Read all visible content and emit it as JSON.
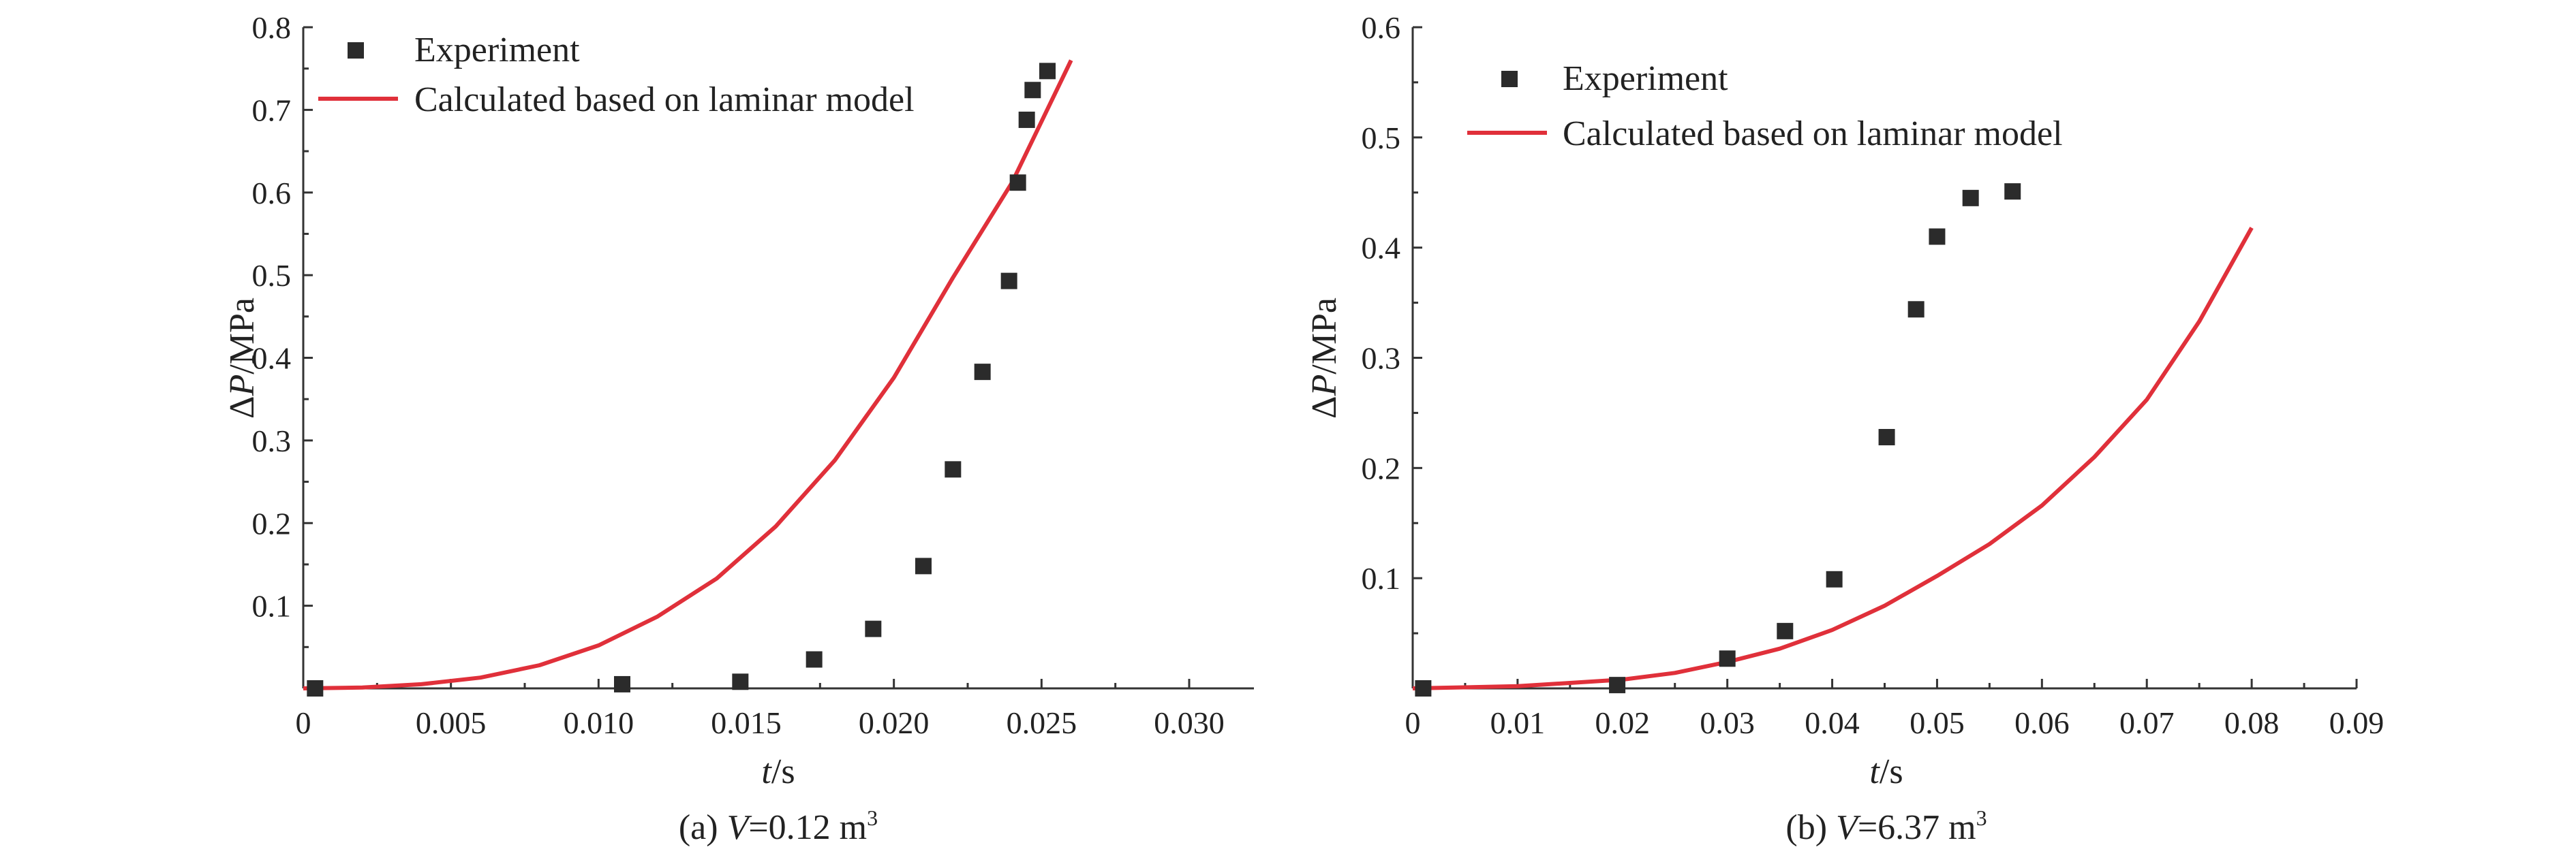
{
  "chart_data": [
    {
      "type": "scatter+line",
      "caption": "(a) V=0.12 m3",
      "caption_parts": {
        "pre": "(a) ",
        "var": "V",
        "mid": "=0.12 m",
        "sup": "3"
      },
      "xlabel": "t/s",
      "xlabel_parts": {
        "var": "t",
        "rest": "/s"
      },
      "ylabel": "ΔP/MPa",
      "ylabel_parts": {
        "pre": "Δ",
        "var": "P",
        "rest": "/MPa"
      },
      "xlim": [
        0,
        0.03
      ],
      "ylim": [
        0,
        0.8
      ],
      "xticks": [
        "0",
        "0.005",
        "0.010",
        "0.015",
        "0.020",
        "0.025",
        "0.030"
      ],
      "xtick_values": [
        0,
        0.005,
        0.01,
        0.015,
        0.02,
        0.025,
        0.03
      ],
      "yticks": [
        "0.1",
        "0.2",
        "0.3",
        "0.4",
        "0.5",
        "0.6",
        "0.7",
        "0.8"
      ],
      "ytick_values": [
        0.1,
        0.2,
        0.3,
        0.4,
        0.5,
        0.6,
        0.7,
        0.8
      ],
      "legend_position": "top-left",
      "grid": false,
      "series": [
        {
          "name": "Experiment",
          "kind": "scatter",
          "x": [
            0.0004,
            0.0108,
            0.0148,
            0.0173,
            0.0193,
            0.021,
            0.022,
            0.023,
            0.0239,
            0.0242,
            0.0245,
            0.0247,
            0.0252
          ],
          "y": [
            0.0,
            0.005,
            0.008,
            0.035,
            0.072,
            0.148,
            0.265,
            0.383,
            0.493,
            0.612,
            0.688,
            0.724,
            0.747
          ]
        },
        {
          "name": "Calculated based on laminar model",
          "kind": "line",
          "x": [
            0.0,
            0.002,
            0.004,
            0.006,
            0.008,
            0.01,
            0.012,
            0.014,
            0.016,
            0.018,
            0.02,
            0.022,
            0.024,
            0.026
          ],
          "y": [
            0.0,
            0.001,
            0.005,
            0.013,
            0.028,
            0.052,
            0.087,
            0.133,
            0.196,
            0.276,
            0.376,
            0.497,
            0.612,
            0.76
          ]
        }
      ],
      "colors": {
        "scatter": "#2b2b2b",
        "line": "#e0303a"
      }
    },
    {
      "type": "scatter+line",
      "caption": "(b) V=6.37 m3",
      "caption_parts": {
        "pre": "(b) ",
        "var": "V",
        "mid": "=6.37 m",
        "sup": "3"
      },
      "xlabel": "t/s",
      "xlabel_parts": {
        "var": "t",
        "rest": "/s"
      },
      "ylabel": "ΔP/MPa",
      "ylabel_parts": {
        "pre": "Δ",
        "var": "P",
        "rest": "/MPa"
      },
      "xlim": [
        0,
        0.09
      ],
      "ylim": [
        0,
        0.6
      ],
      "xticks": [
        "0",
        "0.01",
        "0.02",
        "0.03",
        "0.04",
        "0.05",
        "0.06",
        "0.07",
        "0.08",
        "0.09"
      ],
      "xtick_values": [
        0,
        0.01,
        0.02,
        0.03,
        0.04,
        0.05,
        0.06,
        0.07,
        0.08,
        0.09
      ],
      "yticks": [
        "0.1",
        "0.2",
        "0.3",
        "0.4",
        "0.5",
        "0.6"
      ],
      "ytick_values": [
        0.1,
        0.2,
        0.3,
        0.4,
        0.5,
        0.6
      ],
      "legend_position": "top-left",
      "grid": false,
      "series": [
        {
          "name": "Experiment",
          "kind": "scatter",
          "x": [
            0.001,
            0.0195,
            0.03,
            0.0355,
            0.0402,
            0.0452,
            0.048,
            0.05,
            0.0532,
            0.0572
          ],
          "y": [
            0.0,
            0.003,
            0.027,
            0.052,
            0.099,
            0.228,
            0.344,
            0.41,
            0.445,
            0.451
          ]
        },
        {
          "name": "Calculated based on laminar model",
          "kind": "line",
          "x": [
            0.0,
            0.01,
            0.02,
            0.025,
            0.03,
            0.035,
            0.04,
            0.045,
            0.05,
            0.055,
            0.06,
            0.065,
            0.07,
            0.075,
            0.08
          ],
          "y": [
            0.0,
            0.002,
            0.008,
            0.014,
            0.024,
            0.036,
            0.053,
            0.075,
            0.102,
            0.131,
            0.166,
            0.21,
            0.262,
            0.333,
            0.418
          ]
        }
      ],
      "colors": {
        "scatter": "#2b2b2b",
        "line": "#e0303a"
      }
    }
  ]
}
